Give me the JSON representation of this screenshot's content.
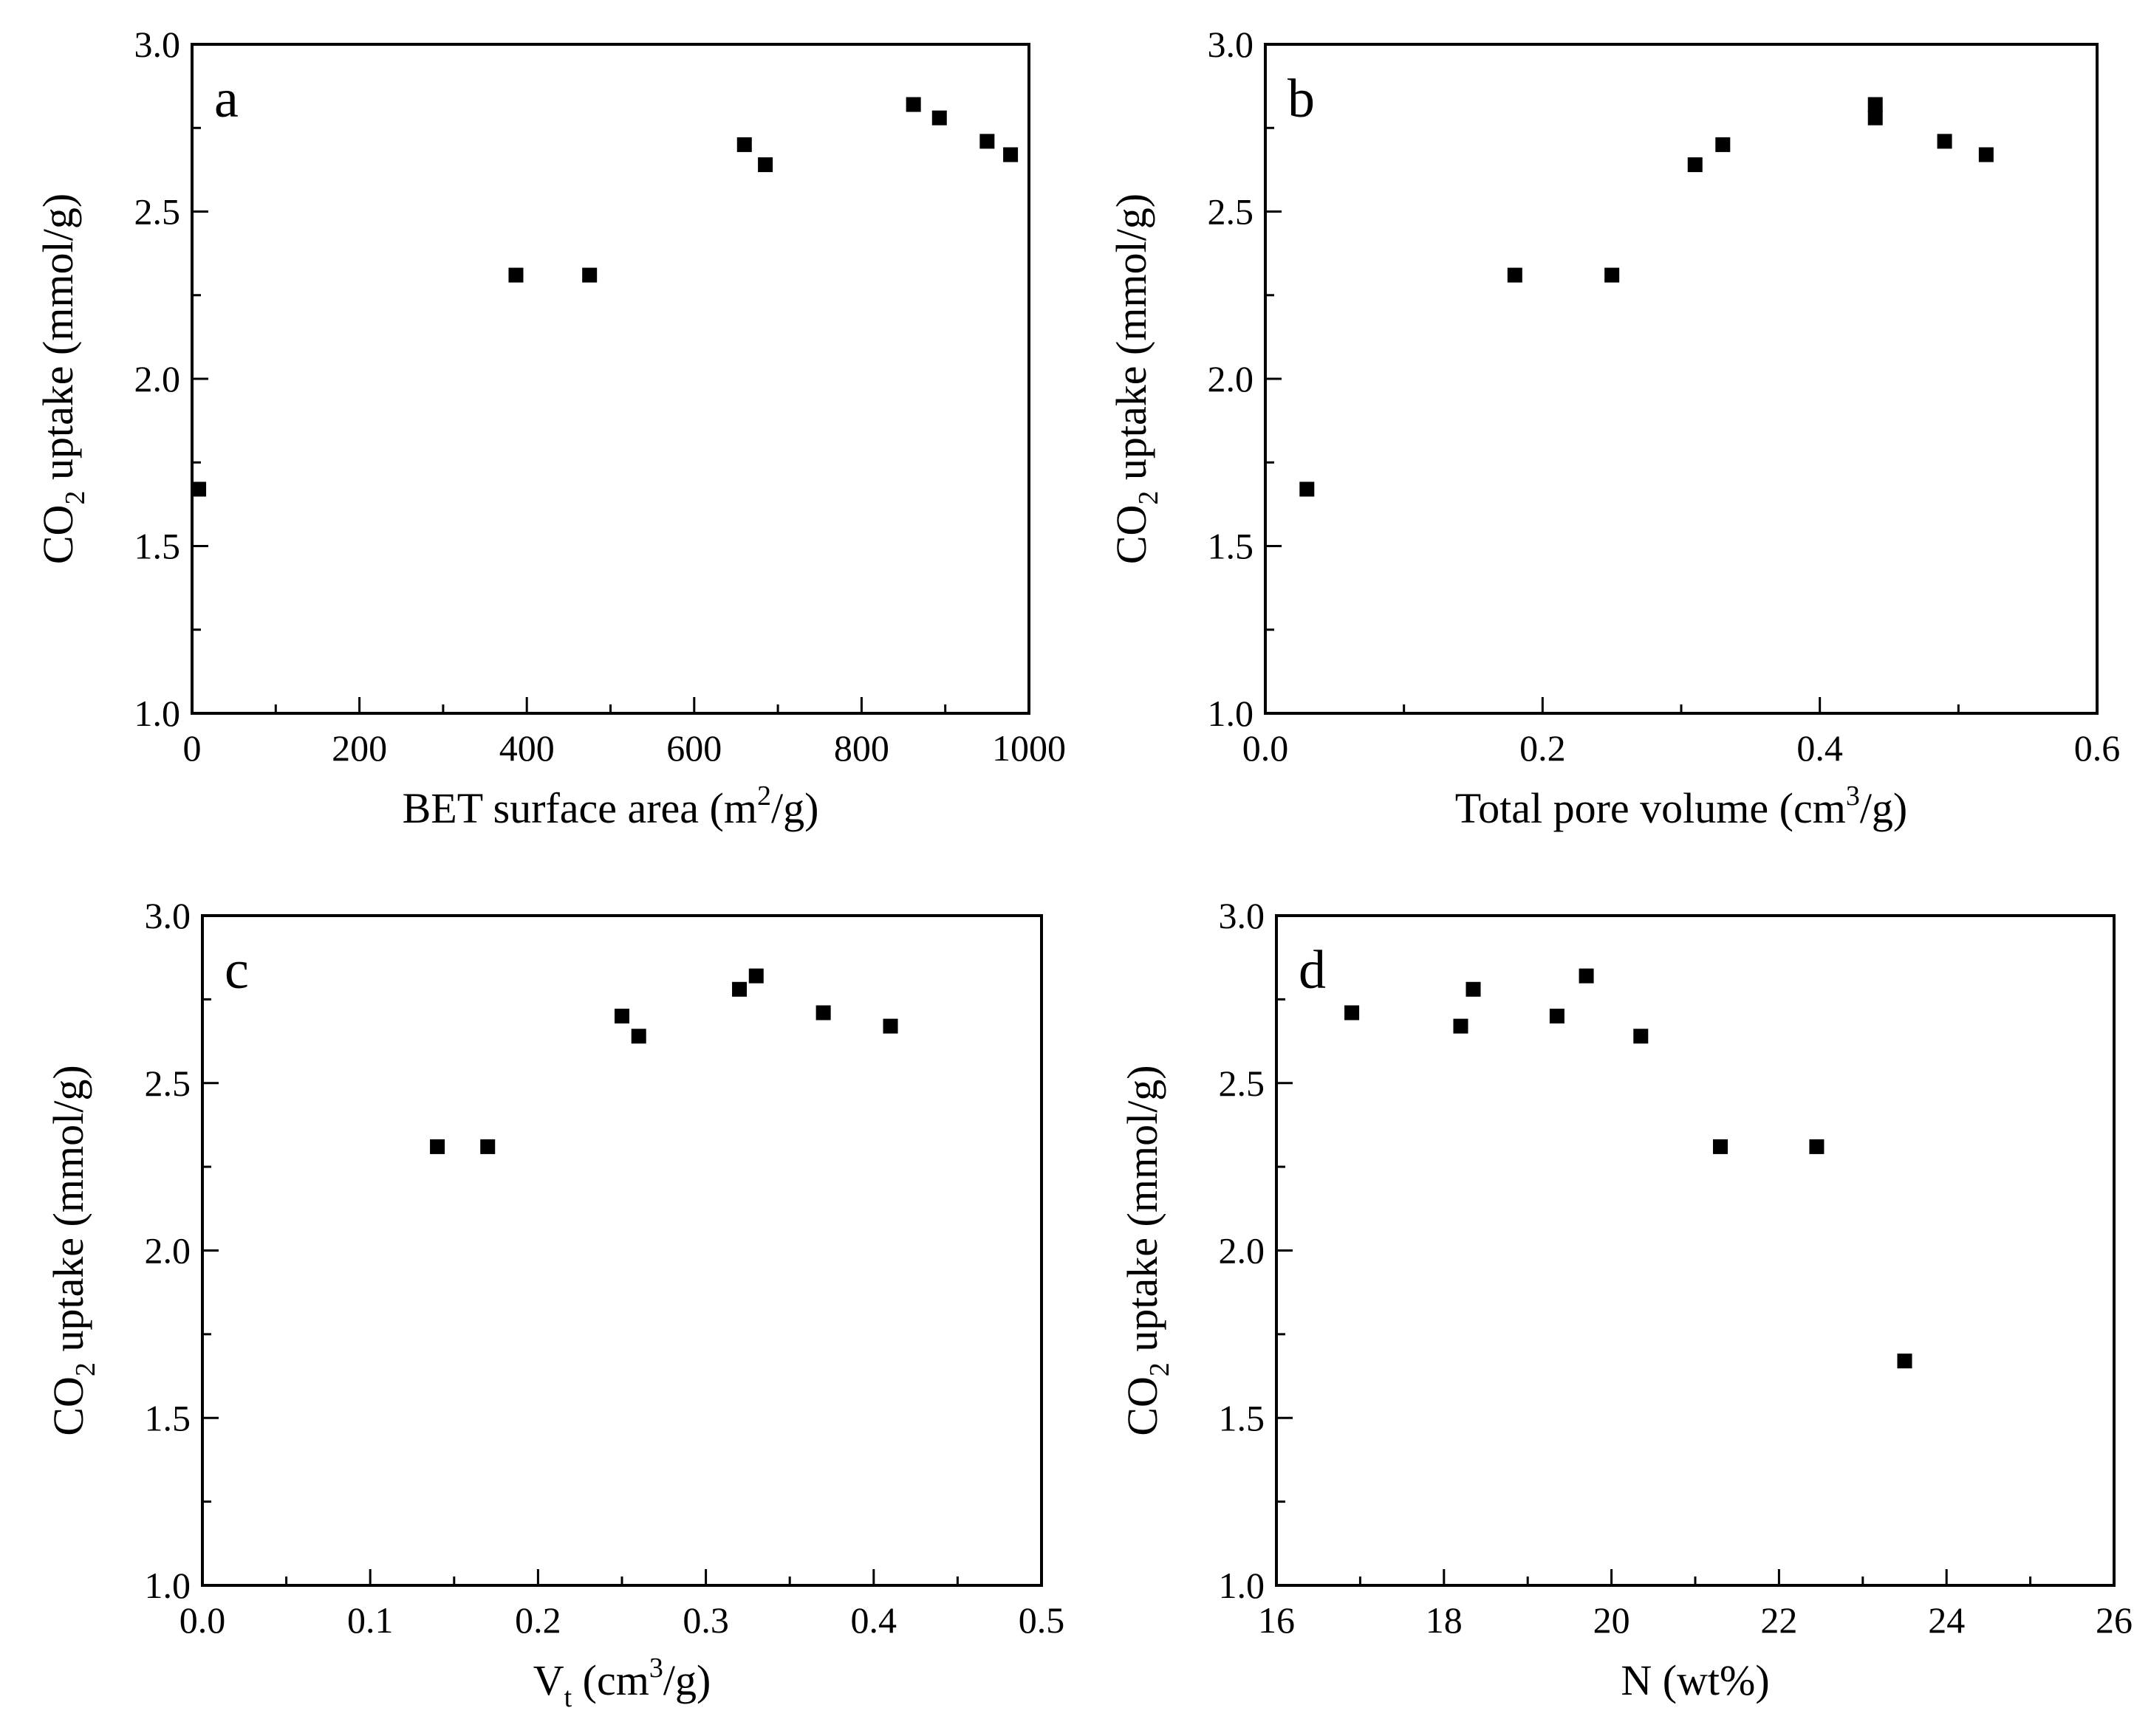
{
  "colors": {
    "axis": "#000000",
    "marker": "#000000",
    "background": "#ffffff"
  },
  "chart_data": [
    {
      "type": "scatter",
      "panel_label": "a",
      "xlabel": {
        "main": "BET surface area (m",
        "sup": "2",
        "tail": "/g)"
      },
      "ylabel": {
        "main": "CO",
        "sub": "2",
        "tail": " uptake (mmol/g)"
      },
      "xlim": [
        0,
        1000
      ],
      "ylim": [
        1.0,
        3.0
      ],
      "xticks": [
        "0",
        "200",
        "400",
        "600",
        "800",
        "1000"
      ],
      "yticks": [
        "1.0",
        "1.5",
        "2.0",
        "2.5",
        "3.0"
      ],
      "marker": "square",
      "x": [
        8,
        387,
        475,
        660,
        685,
        862,
        893,
        950,
        978
      ],
      "y": [
        1.67,
        2.31,
        2.31,
        2.7,
        2.64,
        2.82,
        2.78,
        2.71,
        2.67
      ]
    },
    {
      "type": "scatter",
      "panel_label": "b",
      "xlabel": {
        "main": "Total pore volume (cm",
        "sup": "3",
        "tail": "/g)"
      },
      "ylabel": {
        "main": "CO",
        "sub": "2",
        "tail": " uptake (mmol/g)"
      },
      "xlim": [
        0.0,
        0.6
      ],
      "ylim": [
        1.0,
        3.0
      ],
      "xticks": [
        "0.0",
        "0.2",
        "0.4",
        "0.6"
      ],
      "yticks": [
        "1.0",
        "1.5",
        "2.0",
        "2.5",
        "3.0"
      ],
      "marker": "square",
      "x": [
        0.03,
        0.18,
        0.25,
        0.31,
        0.33,
        0.44,
        0.44,
        0.49,
        0.52
      ],
      "y": [
        1.67,
        2.31,
        2.31,
        2.64,
        2.7,
        2.82,
        2.78,
        2.71,
        2.67
      ]
    },
    {
      "type": "scatter",
      "panel_label": "c",
      "xlabel": {
        "main": "V",
        "sub": "t",
        "mid": " (cm",
        "sup": "3",
        "tail": "/g)"
      },
      "ylabel": {
        "main": "CO",
        "sub": "2",
        "tail": " uptake (mmol/g)"
      },
      "xlim": [
        0.0,
        0.5
      ],
      "ylim": [
        1.0,
        3.0
      ],
      "xticks": [
        "0.0",
        "0.1",
        "0.2",
        "0.3",
        "0.4",
        "0.5"
      ],
      "yticks": [
        "1.0",
        "1.5",
        "2.0",
        "2.5",
        "3.0"
      ],
      "marker": "square",
      "x": [
        0.14,
        0.17,
        0.25,
        0.26,
        0.32,
        0.33,
        0.37,
        0.41
      ],
      "y": [
        2.31,
        2.31,
        2.7,
        2.64,
        2.78,
        2.82,
        2.71,
        2.67
      ]
    },
    {
      "type": "scatter",
      "panel_label": "d",
      "xlabel": {
        "main": "N (wt%)"
      },
      "ylabel": {
        "main": "CO",
        "sub": "2",
        "tail": " uptake (mmol/g)"
      },
      "xlim": [
        16,
        26
      ],
      "ylim": [
        1.0,
        3.0
      ],
      "xticks": [
        "16",
        "18",
        "20",
        "22",
        "24",
        "26"
      ],
      "yticks": [
        "1.0",
        "1.5",
        "2.0",
        "2.5",
        "3.0"
      ],
      "marker": "square",
      "x": [
        16.9,
        18.2,
        18.35,
        19.35,
        19.7,
        20.35,
        21.3,
        22.45,
        23.5
      ],
      "y": [
        2.71,
        2.67,
        2.78,
        2.7,
        2.82,
        2.64,
        2.31,
        2.31,
        1.67
      ]
    }
  ]
}
